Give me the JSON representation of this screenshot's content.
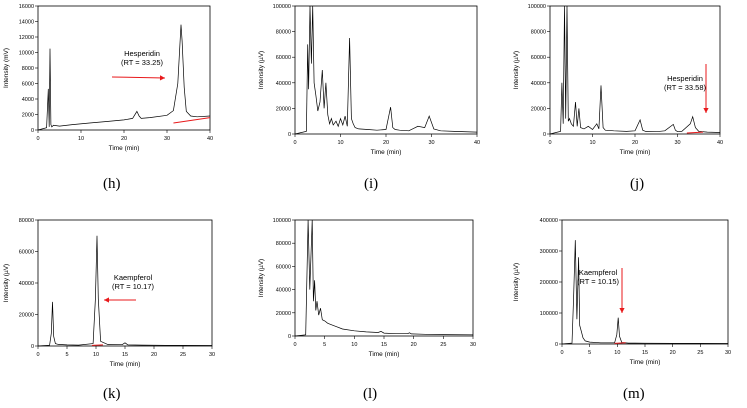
{
  "colors": {
    "trace": "#000000",
    "arrow": "#e8191b",
    "baseline": "#e8191b",
    "axis": "#000000"
  },
  "panels": [
    {
      "label": "(h)",
      "chart_data": {
        "type": "line",
        "xlabel": "Time (min)",
        "ylabel": "Intensity (mV)",
        "xlim": [
          0,
          40
        ],
        "ylim": [
          0,
          16000
        ],
        "xticks": [
          0,
          10,
          20,
          30,
          40
        ],
        "yticks": [
          0,
          2000,
          4000,
          6000,
          8000,
          10000,
          12000,
          14000,
          16000
        ],
        "ytick_labels": [
          "0",
          "2000",
          "4000",
          "6000",
          "8000",
          "10000",
          "12000",
          "14000",
          "16000"
        ],
        "series": [
          {
            "x": [
              0,
              2.0,
              2.4,
              2.6,
              2.8,
              3.0,
              3.2,
              3.6,
              5,
              8,
              12,
              16,
              20,
              22,
              23,
              23.5,
              24,
              26,
              30,
              31.5,
              32.5,
              33.0,
              33.25,
              33.5,
              34.0,
              34.5,
              35.5,
              37,
              40
            ],
            "y": [
              0,
              300,
              5300,
              400,
              10500,
              700,
              400,
              600,
              500,
              700,
              900,
              1100,
              1300,
              1500,
              2400,
              1800,
              1500,
              1600,
              1900,
              2500,
              6000,
              11000,
              13600,
              11500,
              5500,
              2400,
              1800,
              1700,
              1800
            ]
          }
        ],
        "annotation": {
          "text": [
            "Hesperidin",
            "(RT = 33.25)"
          ],
          "kind": "horizontal-arrow",
          "x": 33.25
        },
        "red_baseline": {
          "x": [
            31.5,
            40
          ],
          "y": [
            900,
            1600
          ]
        }
      }
    },
    {
      "label": "(i)",
      "chart_data": {
        "type": "line",
        "xlabel": "Time (min)",
        "ylabel": "Intensity (µV)",
        "xlim": [
          0,
          40
        ],
        "ylim": [
          0,
          100000
        ],
        "xticks": [
          0,
          10,
          20,
          30,
          40
        ],
        "yticks": [
          0,
          20000,
          40000,
          60000,
          80000,
          100000
        ],
        "ytick_labels": [
          "0",
          "20000",
          "40000",
          "60000",
          "80000",
          "100000"
        ],
        "series": [
          {
            "x": [
              0,
              2.5,
              2.8,
              3.0,
              3.3,
              3.6,
              3.9,
              4.2,
              4.6,
              5.0,
              5.5,
              6.0,
              6.4,
              6.8,
              7.2,
              7.6,
              8.0,
              8.4,
              9.0,
              9.5,
              10.0,
              10.5,
              11.0,
              11.5,
              12.0,
              12.4,
              12.8,
              13.2,
              14,
              16,
              18,
              20,
              21.0,
              21.5,
              22.0,
              23,
              25,
              27,
              28.5,
              29.5,
              30.5,
              32,
              35,
              40
            ],
            "y": [
              0,
              2000,
              70000,
              35000,
              100000,
              55000,
              100000,
              40000,
              30000,
              18000,
              25000,
              50000,
              20000,
              40000,
              15000,
              8000,
              12000,
              7000,
              10000,
              6000,
              12000,
              7000,
              14000,
              6000,
              75000,
              12000,
              8000,
              5000,
              4000,
              3500,
              3000,
              3500,
              21000,
              5000,
              3500,
              3000,
              2500,
              6000,
              5000,
              14000,
              4000,
              2500,
              2000,
              1500
            ]
          }
        ]
      }
    },
    {
      "label": "(j)",
      "chart_data": {
        "type": "line",
        "xlabel": "Time (min)",
        "ylabel": "Intensity (µV)",
        "xlim": [
          0,
          40
        ],
        "ylim": [
          0,
          100000
        ],
        "xticks": [
          0,
          10,
          20,
          30,
          40
        ],
        "yticks": [
          0,
          20000,
          40000,
          60000,
          80000,
          100000
        ],
        "ytick_labels": [
          "0",
          "20000",
          "40000",
          "60000",
          "80000",
          "100000"
        ],
        "series": [
          {
            "x": [
              0,
              2.5,
              2.8,
              3.1,
              3.4,
              3.7,
              4.0,
              4.3,
              4.6,
              5.0,
              5.5,
              6.0,
              6.4,
              6.8,
              7.2,
              8,
              9,
              10,
              11,
              11.5,
              12.0,
              12.5,
              13,
              15,
              18,
              20,
              21.2,
              21.8,
              22.5,
              25,
              27,
              29.0,
              29.5,
              30.0,
              31,
              33.0,
              33.58,
              34.2,
              35,
              37,
              40
            ],
            "y": [
              0,
              2000,
              40000,
              8000,
              100000,
              12000,
              100000,
              10000,
              12000,
              8000,
              6000,
              25000,
              6000,
              20000,
              5000,
              4000,
              6000,
              3500,
              8000,
              4000,
              38000,
              5000,
              3000,
              2500,
              2000,
              2500,
              11000,
              3000,
              2000,
              1800,
              2500,
              7500,
              3000,
              1800,
              2000,
              8000,
              13500,
              5000,
              2000,
              1500,
              1200
            ]
          }
        ],
        "annotation": {
          "text": [
            "Hesperidin",
            "(RT = 33.58)"
          ],
          "kind": "vertical-arrow",
          "x": 33.58
        },
        "red_baseline": {
          "x": [
            32.2,
            36
          ],
          "y": [
            800,
            1500
          ]
        }
      }
    },
    {
      "label": "(k)",
      "chart_data": {
        "type": "line",
        "xlabel": "Time (min)",
        "ylabel": "Intensity (µV)",
        "xlim": [
          0,
          30
        ],
        "ylim": [
          0,
          80000
        ],
        "xticks": [
          0,
          5,
          10,
          15,
          20,
          25,
          30
        ],
        "yticks": [
          0,
          20000,
          40000,
          60000,
          80000
        ],
        "ytick_labels": [
          "0",
          "20000",
          "40000",
          "60000",
          "80000"
        ],
        "series": [
          {
            "x": [
              0,
              2.0,
              2.3,
              2.5,
              2.7,
              3.0,
              3.5,
              5,
              7,
              9.5,
              9.9,
              10.17,
              10.4,
              10.8,
              12,
              14.5,
              15,
              15.5,
              18,
              20,
              22,
              25,
              30
            ],
            "y": [
              0,
              500,
              8000,
              28000,
              6000,
              1500,
              1000,
              700,
              600,
              1500,
              30000,
              70000,
              30000,
              3000,
              1000,
              800,
              2000,
              700,
              600,
              500,
              400,
              400,
              300
            ]
          }
        ],
        "annotation": {
          "text": [
            "Kaempferol",
            "(RT = 10.17)"
          ],
          "kind": "horizontal-arrow",
          "x": 10.17
        },
        "red_baseline": {
          "x": [
            9.3,
            11.2
          ],
          "y": [
            400,
            700
          ]
        }
      }
    },
    {
      "label": "(l)",
      "chart_data": {
        "type": "line",
        "xlabel": "Time (min)",
        "ylabel": "Intensity (µV)",
        "xlim": [
          0,
          30
        ],
        "ylim": [
          0,
          100000
        ],
        "xticks": [
          0,
          5,
          10,
          15,
          20,
          25,
          30
        ],
        "yticks": [
          0,
          20000,
          40000,
          60000,
          80000,
          100000
        ],
        "ytick_labels": [
          "0",
          "20000",
          "40000",
          "60000",
          "80000",
          "100000"
        ],
        "series": [
          {
            "x": [
              0,
              1.8,
              2.2,
              2.5,
              2.9,
              3.1,
              3.3,
              3.5,
              3.7,
              4.0,
              4.3,
              4.6,
              5.0,
              5.5,
              6,
              7,
              8,
              10,
              12,
              14,
              14.5,
              15,
              17,
              19,
              19.3,
              19.6,
              22,
              25,
              30
            ],
            "y": [
              0,
              1000,
              100000,
              40000,
              100000,
              30000,
              48000,
              22000,
              30000,
              18000,
              24000,
              14000,
              13000,
              11000,
              10000,
              8000,
              6000,
              4500,
              3500,
              3000,
              4000,
              2500,
              2000,
              2000,
              2800,
              1800,
              1500,
              1200,
              1000
            ]
          }
        ]
      }
    },
    {
      "label": "(m)",
      "chart_data": {
        "type": "line",
        "xlabel": "Time (min)",
        "ylabel": "Intensity (µV)",
        "xlim": [
          0,
          30
        ],
        "ylim": [
          0,
          400000
        ],
        "xticks": [
          0,
          5,
          10,
          15,
          20,
          25,
          30
        ],
        "yticks": [
          0,
          100000,
          200000,
          300000,
          400000
        ],
        "ytick_labels": [
          "0",
          "100000",
          "200000",
          "300000",
          "400000"
        ],
        "series": [
          {
            "x": [
              0,
              1.8,
              2.1,
              2.4,
              2.7,
              3.0,
              3.2,
              3.5,
              3.8,
              4.2,
              5,
              7,
              9.5,
              9.9,
              10.15,
              10.4,
              10.8,
              12,
              15,
              20,
              25,
              30
            ],
            "y": [
              0,
              3000,
              150000,
              335000,
              80000,
              280000,
              60000,
              40000,
              20000,
              10000,
              6000,
              4000,
              4000,
              30000,
              85000,
              25000,
              5000,
              3000,
              2500,
              2000,
              2000,
              1500
            ]
          }
        ],
        "annotation": {
          "text": [
            "Kaempferol",
            "(RT = 10.15)"
          ],
          "kind": "vertical-arrow",
          "x": 10.15
        },
        "red_baseline": {
          "x": [
            9.5,
            11.5
          ],
          "y": [
            2000,
            4000
          ]
        }
      }
    }
  ]
}
